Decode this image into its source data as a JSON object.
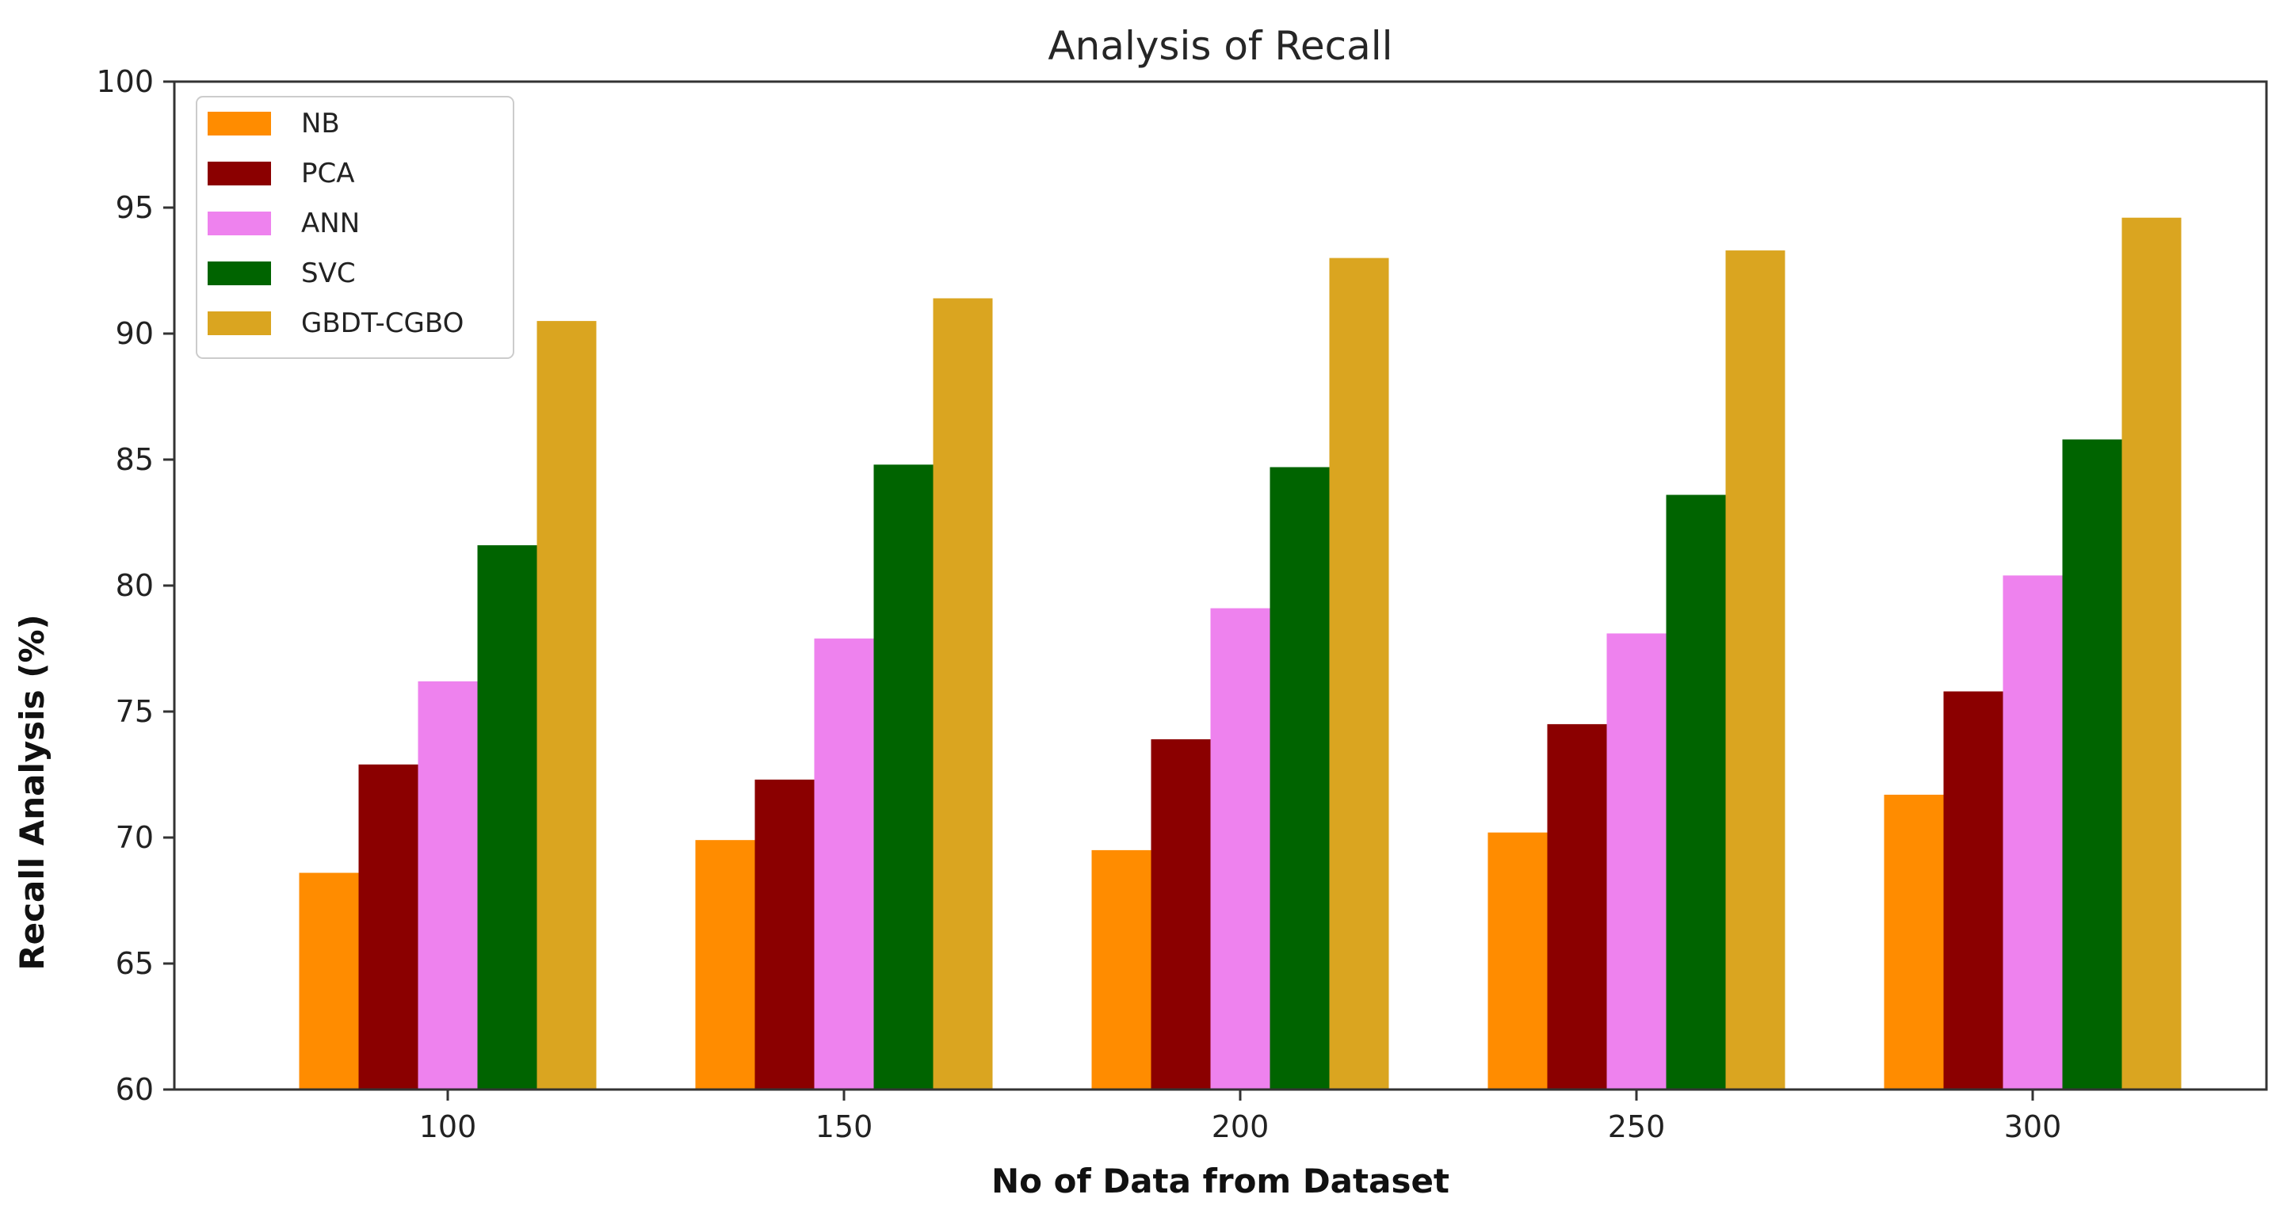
{
  "chart_data": {
    "type": "bar",
    "title": "Analysis of Recall",
    "xlabel": "No of Data from Dataset",
    "ylabel": "Recall Analysis (%)",
    "categories": [
      "100",
      "150",
      "200",
      "250",
      "300"
    ],
    "ylim": [
      60,
      100
    ],
    "yticks": [
      "60",
      "65",
      "70",
      "75",
      "80",
      "85",
      "90",
      "95",
      "100"
    ],
    "grid": false,
    "legend_position": "top-left",
    "series": [
      {
        "name": "NB",
        "color": "#ff8c00",
        "values": [
          68.6,
          69.9,
          69.5,
          70.2,
          71.7
        ]
      },
      {
        "name": "PCA",
        "color": "#8b0000",
        "values": [
          72.9,
          72.3,
          73.9,
          74.5,
          75.8
        ]
      },
      {
        "name": "ANN",
        "color": "#ee82ee",
        "values": [
          76.2,
          77.9,
          79.1,
          78.1,
          80.4
        ]
      },
      {
        "name": "SVC",
        "color": "#006400",
        "values": [
          81.6,
          84.8,
          84.7,
          83.6,
          85.8
        ]
      },
      {
        "name": "GBDT-CGBO",
        "color": "#daa520",
        "values": [
          90.5,
          91.4,
          93.0,
          93.3,
          94.6
        ]
      }
    ]
  }
}
